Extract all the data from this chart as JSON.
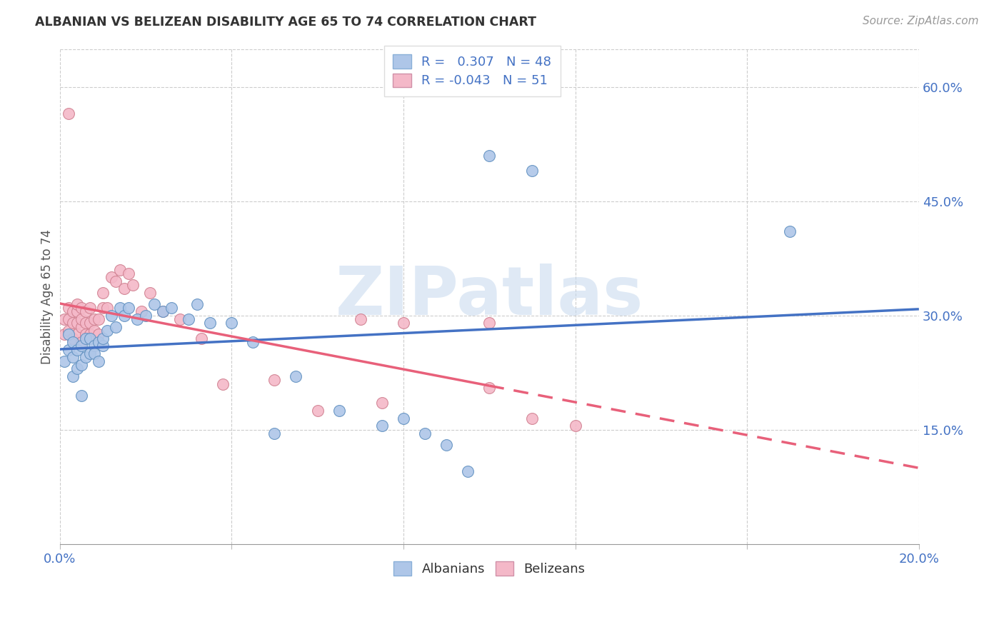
{
  "title": "ALBANIAN VS BELIZEAN DISABILITY AGE 65 TO 74 CORRELATION CHART",
  "source": "Source: ZipAtlas.com",
  "ylabel": "Disability Age 65 to 74",
  "xmin": 0.0,
  "xmax": 0.2,
  "ymin": 0.0,
  "ymax": 0.65,
  "x_ticks": [
    0.0,
    0.04,
    0.08,
    0.12,
    0.16,
    0.2
  ],
  "y_ticks": [
    0.15,
    0.3,
    0.45,
    0.6
  ],
  "y_tick_labels": [
    "15.0%",
    "30.0%",
    "45.0%",
    "60.0%"
  ],
  "albanian_R": 0.307,
  "albanian_N": 48,
  "belizean_R": -0.043,
  "belizean_N": 51,
  "albanian_color": "#aec6e8",
  "belizean_color": "#f4b8c8",
  "albanian_line_color": "#4472c4",
  "belizean_line_color": "#e8607a",
  "watermark": "ZIPatlas",
  "albanian_x": [
    0.001,
    0.002,
    0.002,
    0.003,
    0.003,
    0.003,
    0.004,
    0.004,
    0.005,
    0.005,
    0.006,
    0.006,
    0.007,
    0.007,
    0.008,
    0.008,
    0.009,
    0.009,
    0.01,
    0.01,
    0.011,
    0.012,
    0.013,
    0.014,
    0.015,
    0.016,
    0.018,
    0.02,
    0.022,
    0.024,
    0.026,
    0.03,
    0.032,
    0.035,
    0.04,
    0.045,
    0.05,
    0.055,
    0.065,
    0.075,
    0.08,
    0.085,
    0.09,
    0.095,
    0.1,
    0.11,
    0.17,
    0.005
  ],
  "albanian_y": [
    0.24,
    0.255,
    0.275,
    0.22,
    0.245,
    0.265,
    0.23,
    0.255,
    0.235,
    0.26,
    0.245,
    0.27,
    0.25,
    0.27,
    0.26,
    0.25,
    0.265,
    0.24,
    0.26,
    0.27,
    0.28,
    0.3,
    0.285,
    0.31,
    0.3,
    0.31,
    0.295,
    0.3,
    0.315,
    0.305,
    0.31,
    0.295,
    0.315,
    0.29,
    0.29,
    0.265,
    0.145,
    0.22,
    0.175,
    0.155,
    0.165,
    0.145,
    0.13,
    0.095,
    0.51,
    0.49,
    0.41,
    0.195
  ],
  "belizean_x": [
    0.001,
    0.001,
    0.002,
    0.002,
    0.002,
    0.003,
    0.003,
    0.003,
    0.004,
    0.004,
    0.004,
    0.004,
    0.005,
    0.005,
    0.005,
    0.005,
    0.006,
    0.006,
    0.006,
    0.007,
    0.007,
    0.007,
    0.008,
    0.008,
    0.009,
    0.009,
    0.01,
    0.01,
    0.011,
    0.012,
    0.013,
    0.014,
    0.015,
    0.016,
    0.017,
    0.019,
    0.021,
    0.024,
    0.028,
    0.033,
    0.038,
    0.05,
    0.06,
    0.07,
    0.075,
    0.08,
    0.1,
    0.1,
    0.11,
    0.12,
    0.002
  ],
  "belizean_y": [
    0.275,
    0.295,
    0.28,
    0.295,
    0.31,
    0.27,
    0.29,
    0.305,
    0.275,
    0.29,
    0.305,
    0.315,
    0.265,
    0.285,
    0.295,
    0.31,
    0.275,
    0.29,
    0.305,
    0.275,
    0.29,
    0.31,
    0.28,
    0.295,
    0.275,
    0.295,
    0.31,
    0.33,
    0.31,
    0.35,
    0.345,
    0.36,
    0.335,
    0.355,
    0.34,
    0.305,
    0.33,
    0.305,
    0.295,
    0.27,
    0.21,
    0.215,
    0.175,
    0.295,
    0.185,
    0.29,
    0.29,
    0.205,
    0.165,
    0.155,
    0.565
  ]
}
